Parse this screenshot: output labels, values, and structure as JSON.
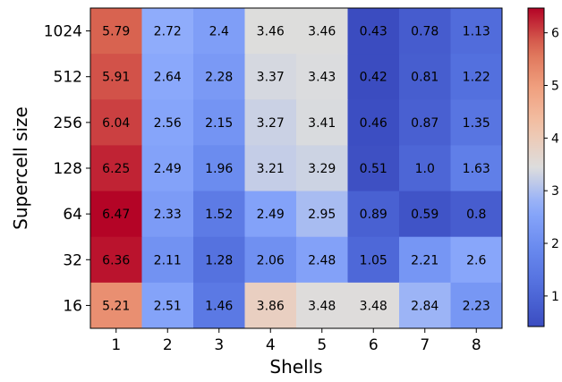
{
  "chart_data": {
    "type": "heatmap",
    "xlabel": "Shells",
    "ylabel": "Supercell size",
    "x_categories": [
      "1",
      "2",
      "3",
      "4",
      "5",
      "6",
      "7",
      "8"
    ],
    "y_categories": [
      "1024",
      "512",
      "256",
      "128",
      "64",
      "32",
      "16"
    ],
    "values": [
      [
        5.79,
        2.72,
        2.4,
        3.46,
        3.46,
        0.43,
        0.78,
        1.13
      ],
      [
        5.91,
        2.64,
        2.28,
        3.37,
        3.43,
        0.42,
        0.81,
        1.22
      ],
      [
        6.04,
        2.56,
        2.15,
        3.27,
        3.41,
        0.46,
        0.87,
        1.35
      ],
      [
        6.25,
        2.49,
        1.96,
        3.21,
        3.29,
        0.51,
        1.0,
        1.63
      ],
      [
        6.47,
        2.33,
        1.52,
        2.49,
        2.95,
        0.89,
        0.59,
        0.8
      ],
      [
        6.36,
        2.11,
        1.28,
        2.06,
        2.48,
        1.05,
        2.21,
        2.6
      ],
      [
        5.21,
        2.51,
        1.46,
        3.86,
        3.48,
        3.48,
        2.84,
        2.23
      ]
    ],
    "cell_labels": [
      [
        "5.79",
        "2.72",
        "2.4",
        "3.46",
        "3.46",
        "0.43",
        "0.78",
        "1.13"
      ],
      [
        "5.91",
        "2.64",
        "2.28",
        "3.37",
        "3.43",
        "0.42",
        "0.81",
        "1.22"
      ],
      [
        "6.04",
        "2.56",
        "2.15",
        "3.27",
        "3.41",
        "0.46",
        "0.87",
        "1.35"
      ],
      [
        "6.25",
        "2.49",
        "1.96",
        "3.21",
        "3.29",
        "0.51",
        "1.0",
        "1.63"
      ],
      [
        "6.47",
        "2.33",
        "1.52",
        "2.49",
        "2.95",
        "0.89",
        "0.59",
        "0.8"
      ],
      [
        "6.36",
        "2.11",
        "1.28",
        "2.06",
        "2.48",
        "1.05",
        "2.21",
        "2.6"
      ],
      [
        "5.21",
        "2.51",
        "1.46",
        "3.86",
        "3.48",
        "3.48",
        "2.84",
        "2.23"
      ]
    ],
    "colormap": "coolwarm",
    "colorbar": {
      "range": [
        0.42,
        6.47
      ],
      "ticks": [
        1,
        2,
        3,
        4,
        5,
        6
      ],
      "tick_labels": [
        "1",
        "2",
        "3",
        "4",
        "5",
        "6"
      ]
    },
    "grid": false
  }
}
